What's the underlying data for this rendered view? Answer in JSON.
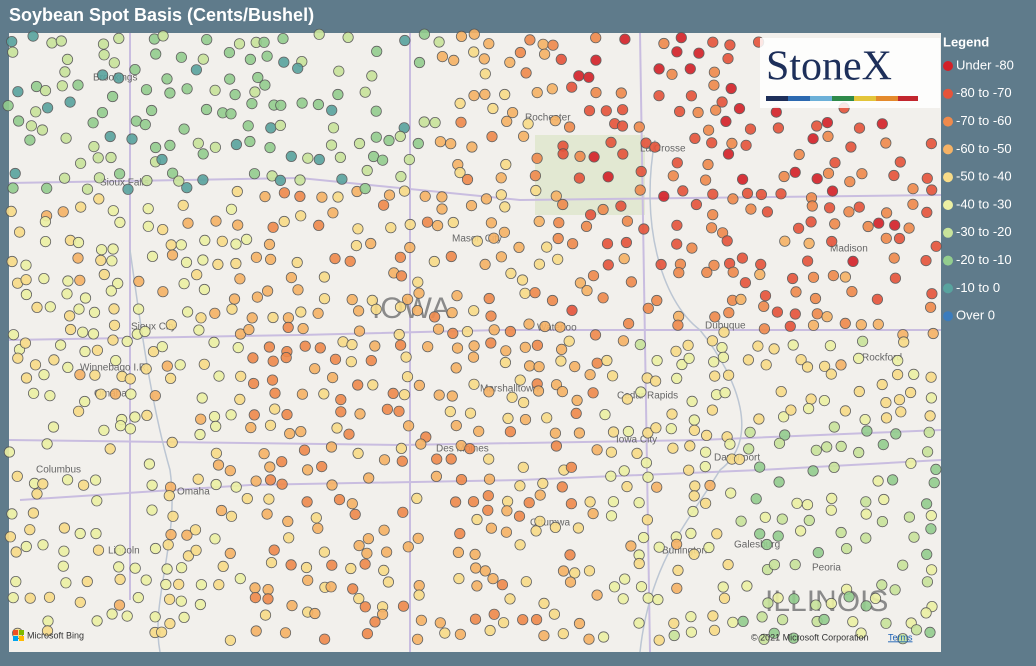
{
  "header": {
    "title": "Soybean Spot Basis (Cents/Bushel)"
  },
  "logo": {
    "text": "StoneX"
  },
  "legend": {
    "title": "Legend",
    "items": [
      {
        "label": "Under -80",
        "color": "#d42027"
      },
      {
        "label": "-80 to -70",
        "color": "#e5533a"
      },
      {
        "label": "-70 to -60",
        "color": "#ef8a4c"
      },
      {
        "label": "-60 to -50",
        "color": "#f6b265"
      },
      {
        "label": "-50 to -40",
        "color": "#f8dc88"
      },
      {
        "label": "-40 to -30",
        "color": "#ecf0a3"
      },
      {
        "label": "-30 to -20",
        "color": "#c8e39b"
      },
      {
        "label": "-20 to -10",
        "color": "#93cd8e"
      },
      {
        "label": "-10 to 0",
        "color": "#58a39e"
      },
      {
        "label": "Over 0",
        "color": "#3a7cbd"
      }
    ]
  },
  "map": {
    "labels": [
      "Brookings",
      "Sioux Falls",
      "Rochester",
      "La Crosse",
      "Mason City",
      "Madison",
      "IOWA",
      "Sioux City",
      "Waterloo",
      "Dubuque",
      "Winnebago I.R.",
      "Omaha",
      "Marshalltown",
      "Rockford",
      "Cedar Rapids",
      "Iowa City",
      "Des Moines",
      "Davenport",
      "Columbus",
      "Omaha",
      "Ottumwa",
      "Burlington",
      "Galesburg",
      "Lincoln",
      "Peoria",
      "ILLINOIS"
    ],
    "attribution": "Microsoft Bing",
    "copyright": "© 2021 Microsoft Corporation",
    "terms": "Terms"
  }
}
